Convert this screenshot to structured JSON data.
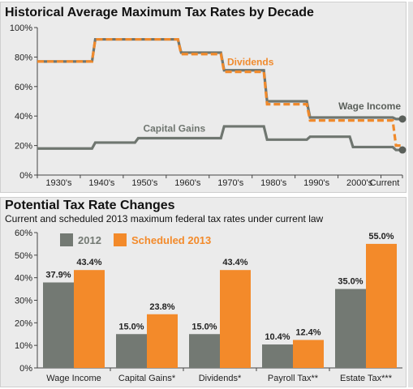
{
  "chart_data": [
    {
      "type": "line",
      "title": "Historical Average Maximum Tax Rates by Decade",
      "x": [
        "1930's",
        "1940's",
        "1950's",
        "1960's",
        "1970's",
        "1980's",
        "1990's",
        "2000's",
        "Current"
      ],
      "ylim": [
        0,
        100
      ],
      "yticks": [
        0,
        20,
        40,
        60,
        80,
        100
      ],
      "ytick_labels": [
        "0%",
        "20%",
        "40%",
        "60%",
        "80%",
        "100%"
      ],
      "series": [
        {
          "name": "Wage Income",
          "color": "#6f7670",
          "style": "solid",
          "values": [
            77,
            92,
            92,
            83,
            71,
            50,
            39,
            39,
            38
          ]
        },
        {
          "name": "Dividends",
          "color": "#f08a2c",
          "style": "dashed",
          "values": [
            77,
            92,
            92,
            82,
            70,
            48,
            37,
            37,
            20
          ]
        },
        {
          "name": "Capital Gains",
          "color": "#6f7670",
          "style": "solid",
          "values": [
            18,
            22,
            25,
            25,
            33,
            24,
            26,
            19,
            17
          ]
        }
      ],
      "end_markers": [
        "Wage Income",
        "Capital Gains"
      ],
      "grid": false
    },
    {
      "type": "bar",
      "title": "Potential Tax Rate Changes",
      "subtitle": "Current and scheduled 2013 maximum federal tax rates under current law",
      "categories": [
        "Wage Income",
        "Capital Gains*",
        "Dividends*",
        "Payroll Tax**",
        "Estate Tax***"
      ],
      "ylim": [
        0,
        60
      ],
      "yticks": [
        0,
        10,
        20,
        30,
        40,
        50,
        60
      ],
      "ytick_labels": [
        "0%",
        "10%",
        "20%",
        "30%",
        "40%",
        "50%",
        "60%"
      ],
      "series": [
        {
          "name": "2012",
          "color": "#737973",
          "values": [
            37.9,
            15.0,
            15.0,
            10.4,
            35.0
          ],
          "labels": [
            "37.9%",
            "15.0%",
            "15.0%",
            "10.4%",
            "35.0%"
          ]
        },
        {
          "name": "Scheduled 2013",
          "color": "#f38a2a",
          "values": [
            43.4,
            23.8,
            43.4,
            12.4,
            55.0
          ],
          "labels": [
            "43.4%",
            "23.8%",
            "43.4%",
            "12.4%",
            "55.0%"
          ]
        }
      ],
      "legend": "top-left",
      "grid": false
    }
  ]
}
